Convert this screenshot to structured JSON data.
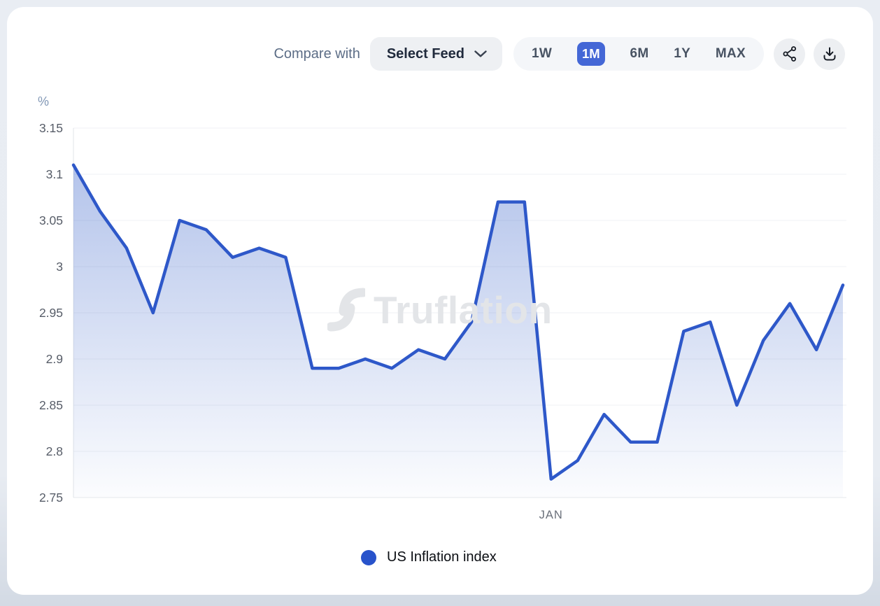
{
  "header": {
    "compare_label": "Compare with",
    "feed_select_label": "Select Feed"
  },
  "toolbar": {
    "ranges": [
      {
        "label": "1W",
        "active": false
      },
      {
        "label": "1M",
        "active": true
      },
      {
        "label": "6M",
        "active": false
      },
      {
        "label": "1Y",
        "active": false
      },
      {
        "label": "MAX",
        "active": false
      }
    ],
    "icons": {
      "share": "share-nodes-icon",
      "download": "download-icon",
      "feed_chevron": "chevron-down-icon"
    }
  },
  "legend": {
    "label": "US Inflation index",
    "dot_color": "#2853cb"
  },
  "watermark_text": "Truflation",
  "colors": {
    "accent_blue": "#4467d6",
    "line_blue": "#2e58c9",
    "area_top": "rgba(47,91,199,0.40)",
    "area_bottom": "rgba(47,91,199,0.01)",
    "grid": "#eff1f4",
    "grid_bottom": "#e6e8ec",
    "axis": "#e2e4e8",
    "tick_text": "#575d68",
    "x_tick_text": "#6a707a",
    "unit_text": "#8298b6"
  },
  "chart_data": {
    "type": "area",
    "unit_label": "%",
    "ylim": [
      2.75,
      3.15
    ],
    "y_ticks": [
      3.15,
      3.1,
      3.05,
      3,
      2.95,
      2.9,
      2.85,
      2.8,
      2.75
    ],
    "y_tick_labels": [
      "3.15",
      "3.1",
      "3.05",
      "3",
      "2.95",
      "2.9",
      "2.85",
      "2.8",
      "2.75"
    ],
    "x_ticks": [
      {
        "label": "JAN",
        "index": 18
      }
    ],
    "grid": true,
    "legend_position": "bottom",
    "series": [
      {
        "name": "US Inflation index",
        "color": "#2e58c9",
        "values": [
          3.11,
          3.06,
          3.02,
          2.95,
          3.05,
          3.04,
          3.01,
          3.02,
          3.01,
          2.89,
          2.89,
          2.9,
          2.89,
          2.91,
          2.9,
          2.94,
          3.07,
          3.07,
          2.77,
          2.79,
          2.84,
          2.81,
          2.81,
          2.93,
          2.94,
          2.85,
          2.92,
          2.96,
          2.91,
          2.98
        ]
      }
    ]
  }
}
